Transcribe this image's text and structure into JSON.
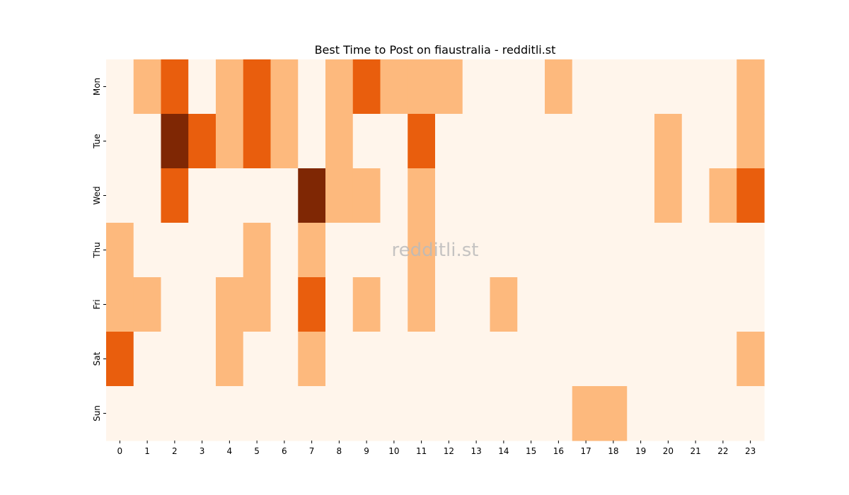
{
  "chart_data": {
    "type": "heatmap",
    "title": "Best Time to Post on fiaustralia - redditli.st",
    "watermark": "redditli.st",
    "xlabel": "",
    "ylabel": "",
    "x": [
      "0",
      "1",
      "2",
      "3",
      "4",
      "5",
      "6",
      "7",
      "8",
      "9",
      "10",
      "11",
      "12",
      "13",
      "14",
      "15",
      "16",
      "17",
      "18",
      "19",
      "20",
      "21",
      "22",
      "23"
    ],
    "y": [
      "Mon",
      "Tue",
      "Wed",
      "Thu",
      "Fri",
      "Sat",
      "Sun"
    ],
    "values": [
      [
        0,
        1,
        2,
        0,
        1,
        2,
        1,
        0,
        1,
        2,
        1,
        1,
        1,
        0,
        0,
        0,
        1,
        0,
        0,
        0,
        0,
        0,
        0,
        1
      ],
      [
        0,
        0,
        3,
        2,
        1,
        2,
        1,
        0,
        1,
        0,
        0,
        2,
        0,
        0,
        0,
        0,
        0,
        0,
        0,
        0,
        1,
        0,
        0,
        1
      ],
      [
        0,
        0,
        2,
        0,
        0,
        0,
        0,
        3,
        1,
        1,
        0,
        1,
        0,
        0,
        0,
        0,
        0,
        0,
        0,
        0,
        1,
        0,
        1,
        2
      ],
      [
        1,
        0,
        0,
        0,
        0,
        1,
        0,
        1,
        0,
        0,
        0,
        1,
        0,
        0,
        0,
        0,
        0,
        0,
        0,
        0,
        0,
        0,
        0,
        0
      ],
      [
        1,
        1,
        0,
        0,
        1,
        1,
        0,
        2,
        0,
        1,
        0,
        1,
        0,
        0,
        1,
        0,
        0,
        0,
        0,
        0,
        0,
        0,
        0,
        0
      ],
      [
        2,
        0,
        0,
        0,
        1,
        0,
        0,
        1,
        0,
        0,
        0,
        0,
        0,
        0,
        0,
        0,
        0,
        0,
        0,
        0,
        0,
        0,
        0,
        1
      ],
      [
        0,
        0,
        0,
        0,
        0,
        0,
        0,
        0,
        0,
        0,
        0,
        0,
        0,
        0,
        0,
        0,
        0,
        1,
        1,
        0,
        0,
        0,
        0,
        0
      ]
    ],
    "colors": [
      "#fff5eb",
      "#fdb97d",
      "#e95e0d",
      "#7f2704"
    ],
    "grid": false,
    "legend": "none"
  }
}
